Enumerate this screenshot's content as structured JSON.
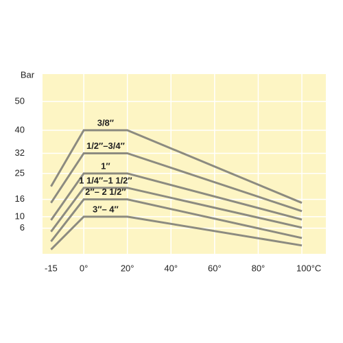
{
  "chart_data": {
    "type": "line",
    "y_label": "Bar",
    "x": [
      -15,
      0,
      20,
      100
    ],
    "xlim": [
      -18.9,
      111
    ],
    "ylim": [
      -2.9,
      59.5
    ],
    "xticks": [
      -15,
      {
        "value": 0,
        "label": "0°"
      },
      {
        "value": 20,
        "label": "20°"
      },
      {
        "value": 40,
        "label": "40°"
      },
      {
        "value": 60,
        "label": "60°"
      },
      {
        "value": 80,
        "label": "80°"
      },
      {
        "value": 100,
        "label": "100°C"
      }
    ],
    "yticks": [
      6,
      10,
      16,
      25,
      32,
      40,
      50
    ],
    "grid": true,
    "background": "#fdf5c4",
    "series": [
      {
        "name": "3/8″",
        "color": "#8c8b80",
        "values": [
          20.5,
          40,
          40,
          14.8
        ]
      },
      {
        "name": "1/2″–3/4″",
        "color": "#8c8b80",
        "values": [
          14.8,
          32,
          32,
          11.9
        ]
      },
      {
        "name": "1″",
        "color": "#8c8b80",
        "values": [
          8.8,
          25,
          25,
          9
        ]
      },
      {
        "name": "1 1/4″–1 1/2″",
        "color": "#8c8b80",
        "values": [
          4.8,
          20,
          20,
          6.2
        ]
      },
      {
        "name": "2″– 2 1/2″",
        "color": "#8c8b80",
        "values": [
          1.4,
          16,
          16,
          2.6
        ]
      },
      {
        "name": "3″– 4″",
        "color": "#8c8b80",
        "values": [
          -1.4,
          10,
          10,
          0
        ]
      }
    ]
  }
}
